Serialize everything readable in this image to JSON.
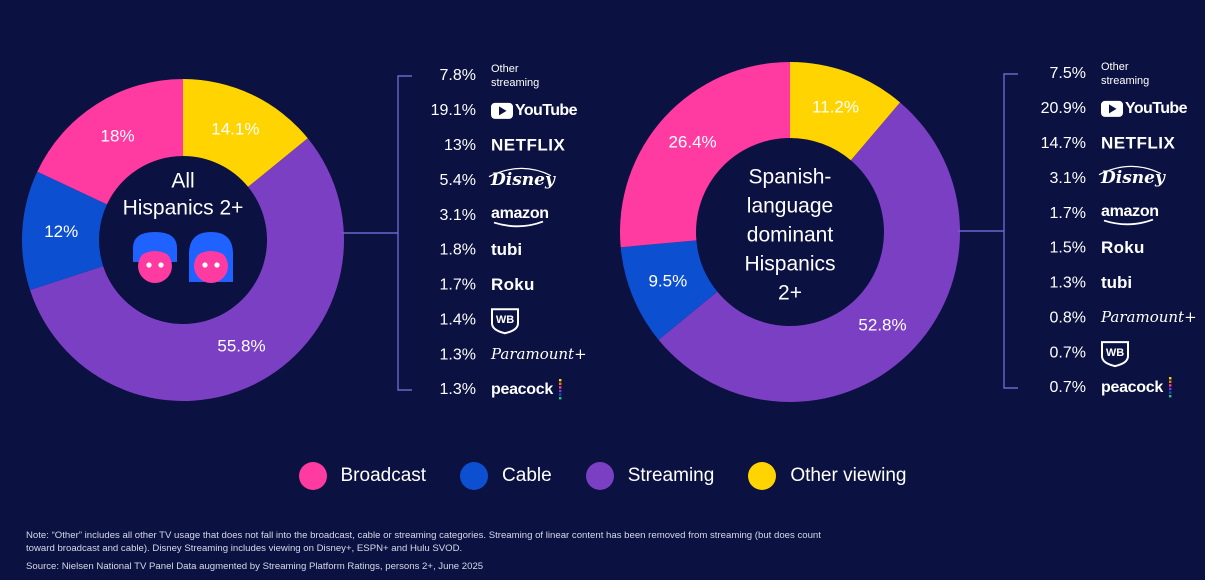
{
  "colors": {
    "background": "#0b1140",
    "broadcast": "#ff3aa0",
    "cable": "#0d4fd1",
    "streaming": "#7b3fc4",
    "other_viewing": "#ffd400"
  },
  "chart_data": [
    {
      "type": "donut",
      "center_label": "All Hispanics 2+",
      "icon": "two-faces-icon",
      "slices": [
        {
          "category": "Other viewing",
          "value": 14.1,
          "label": "14.1%"
        },
        {
          "category": "Streaming",
          "value": 55.8,
          "label": "55.8%"
        },
        {
          "category": "Cable",
          "value": 12,
          "label": "12%"
        },
        {
          "category": "Broadcast",
          "value": 18,
          "label": "18%"
        }
      ],
      "streaming_breakdown": [
        {
          "value": 7.8,
          "label": "7.8%",
          "name": "Other streaming"
        },
        {
          "value": 19.1,
          "label": "19.1%",
          "name": "YouTube"
        },
        {
          "value": 13,
          "label": "13%",
          "name": "NETFLIX"
        },
        {
          "value": 5.4,
          "label": "5.4%",
          "name": "Disney"
        },
        {
          "value": 3.1,
          "label": "3.1%",
          "name": "amazon"
        },
        {
          "value": 1.8,
          "label": "1.8%",
          "name": "tubi"
        },
        {
          "value": 1.7,
          "label": "1.7%",
          "name": "Roku"
        },
        {
          "value": 1.4,
          "label": "1.4%",
          "name": "WB"
        },
        {
          "value": 1.3,
          "label": "1.3%",
          "name": "Paramount+"
        },
        {
          "value": 1.3,
          "label": "1.3%",
          "name": "peacock"
        }
      ]
    },
    {
      "type": "donut",
      "center_label": "Spanish-language dominant Hispanics 2+",
      "slices": [
        {
          "category": "Other viewing",
          "value": 11.2,
          "label": "11.2%"
        },
        {
          "category": "Streaming",
          "value": 52.8,
          "label": "52.8%"
        },
        {
          "category": "Cable",
          "value": 9.5,
          "label": "9.5%"
        },
        {
          "category": "Broadcast",
          "value": 26.4,
          "label": "26.4%"
        }
      ],
      "streaming_breakdown": [
        {
          "value": 7.5,
          "label": "7.5%",
          "name": "Other streaming"
        },
        {
          "value": 20.9,
          "label": "20.9%",
          "name": "YouTube"
        },
        {
          "value": 14.7,
          "label": "14.7%",
          "name": "NETFLIX"
        },
        {
          "value": 3.1,
          "label": "3.1%",
          "name": "Disney"
        },
        {
          "value": 1.7,
          "label": "1.7%",
          "name": "amazon"
        },
        {
          "value": 1.5,
          "label": "1.5%",
          "name": "Roku"
        },
        {
          "value": 1.3,
          "label": "1.3%",
          "name": "tubi"
        },
        {
          "value": 0.8,
          "label": "0.8%",
          "name": "Paramount+"
        },
        {
          "value": 0.7,
          "label": "0.7%",
          "name": "WB"
        },
        {
          "value": 0.7,
          "label": "0.7%",
          "name": "peacock"
        }
      ]
    }
  ],
  "legend": [
    {
      "label": "Broadcast",
      "color_key": "broadcast"
    },
    {
      "label": "Cable",
      "color_key": "cable"
    },
    {
      "label": "Streaming",
      "color_key": "streaming"
    },
    {
      "label": "Other viewing",
      "color_key": "other_viewing"
    }
  ],
  "notes": {
    "note": "Note: “Other” includes all other TV usage that does not fall into the broadcast, cable or streaming categories. Streaming of linear content has been removed from streaming (but does count toward broadcast and cable). Disney Streaming includes viewing on Disney+, ESPN+ and Hulu SVOD.",
    "source": "Source: Nielsen National TV Panel Data augmented by Streaming Platform Ratings, persons 2+, June 2025"
  }
}
